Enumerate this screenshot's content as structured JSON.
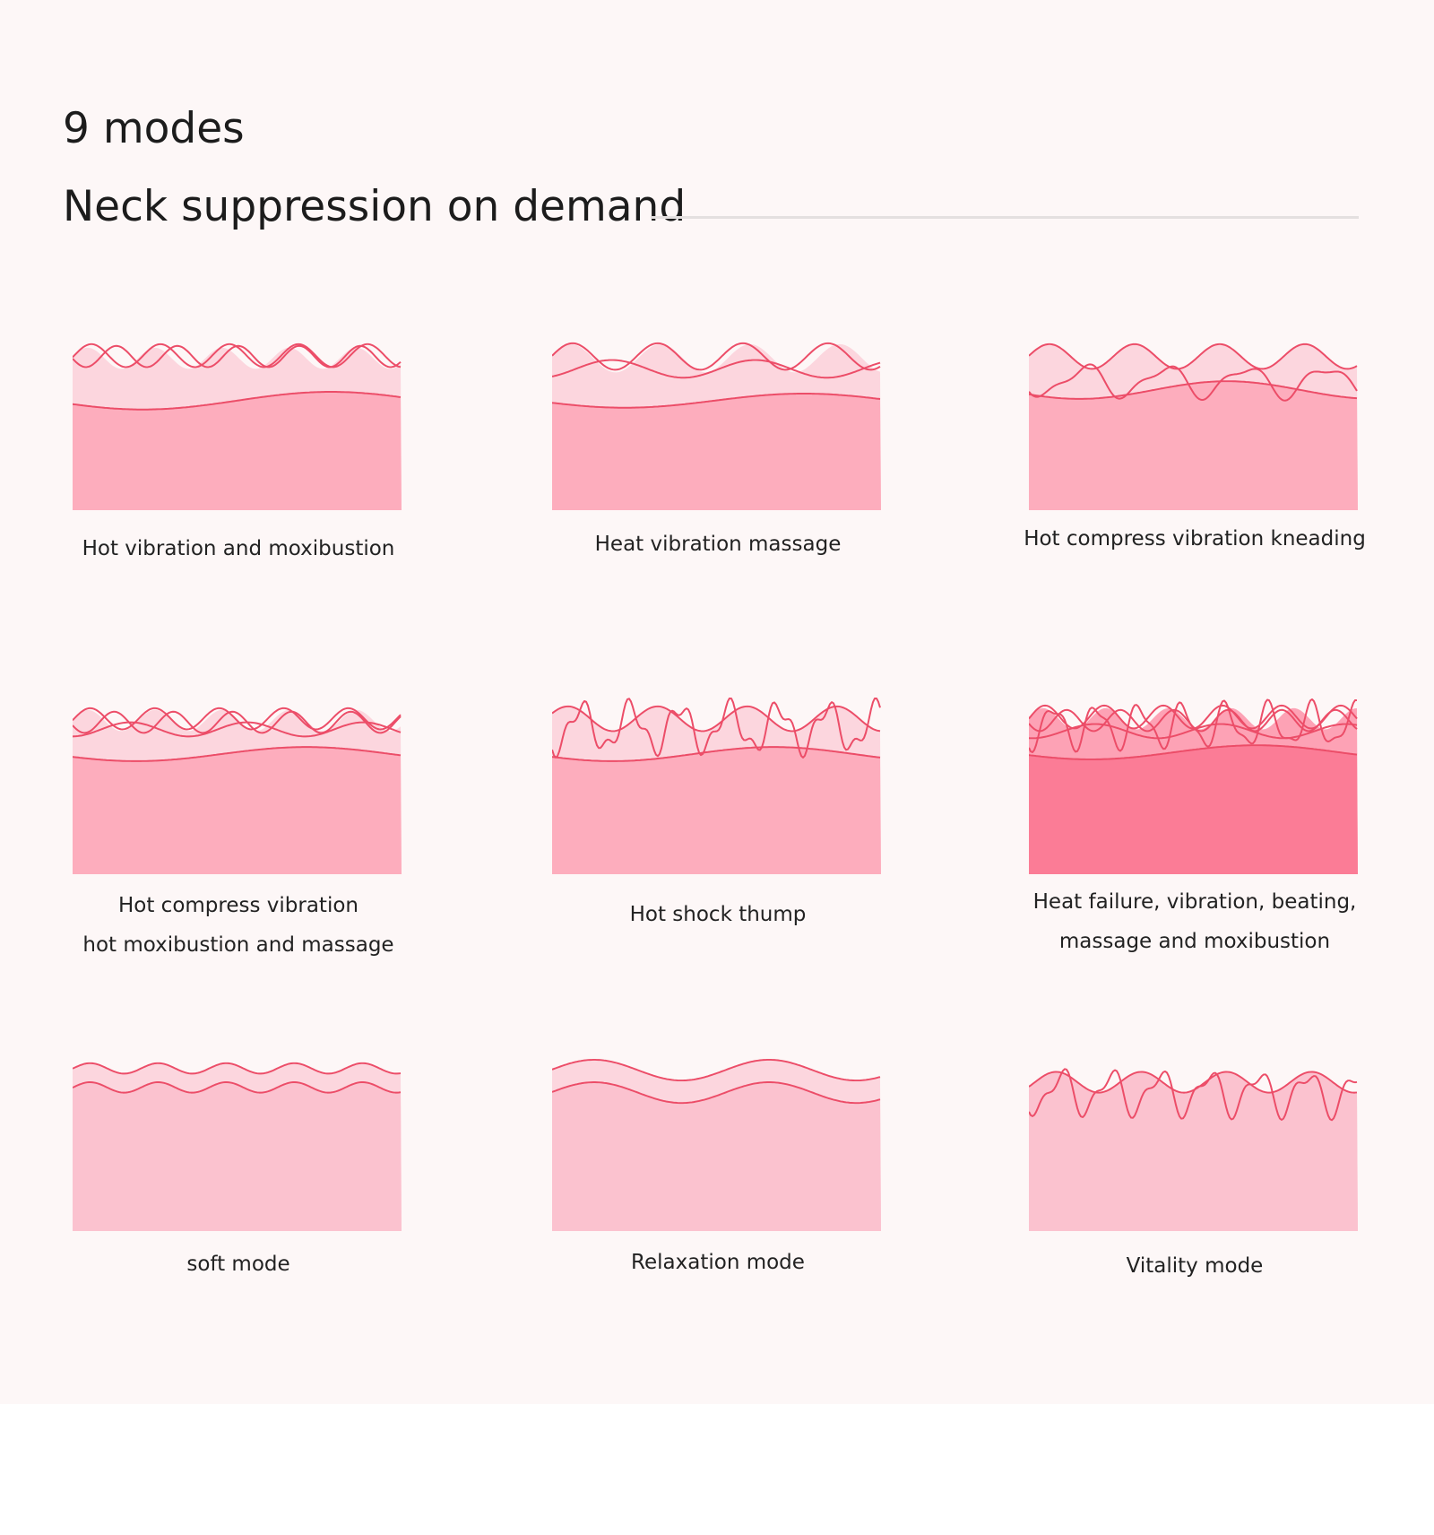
{
  "heading": {
    "title": "9 modes",
    "subtitle": "Neck suppression on demand"
  },
  "colors": {
    "background": "#fdf7f7",
    "line": "#ec4d68",
    "fill_light": "#fcd6de",
    "fill_mid": "#fdadbd",
    "fill_deep": "#fb7c96",
    "fill_soft": "#fbc2cf"
  },
  "modes": [
    {
      "lines": [
        "Hot vibration and moxibustion"
      ],
      "fill": "fill_mid",
      "style": "double-wave"
    },
    {
      "lines": [
        "Heat vibration massage"
      ],
      "fill": "fill_mid",
      "style": "broad-wave"
    },
    {
      "lines": [
        "Hot compress vibration kneading"
      ],
      "fill": "fill_mid",
      "style": "deep-wave"
    },
    {
      "lines": [
        "Hot compress vibration",
        "hot moxibustion and massage"
      ],
      "fill": "fill_mid",
      "style": "triple-wave"
    },
    {
      "lines": [
        "Hot shock thump"
      ],
      "fill": "fill_mid",
      "style": "spike-wave"
    },
    {
      "lines": [
        "Heat failure, vibration, beating,",
        "massage and moxibustion"
      ],
      "fill": "fill_deep",
      "style": "dense-wave"
    },
    {
      "lines": [
        "soft mode"
      ],
      "fill": "fill_soft",
      "style": "ribbon-small"
    },
    {
      "lines": [
        "Relaxation mode"
      ],
      "fill": "fill_soft",
      "style": "ribbon-large"
    },
    {
      "lines": [
        "Vitality mode"
      ],
      "fill": "fill_soft",
      "style": "irregular-wave"
    }
  ]
}
